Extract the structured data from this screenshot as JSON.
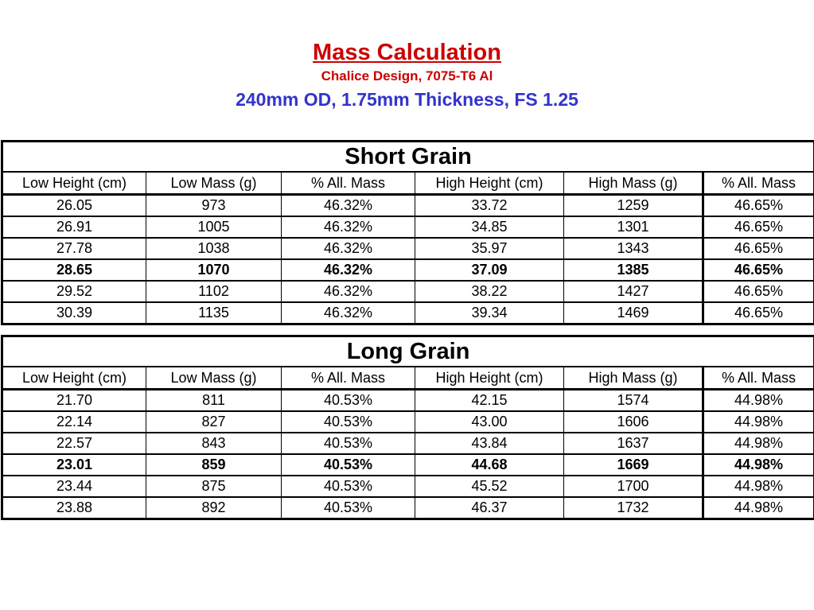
{
  "header": {
    "title": "Mass Calculation",
    "subtitle": "Chalice Design, 7075-T6 Al",
    "spec": "240mm OD, 1.75mm Thickness, FS 1.25"
  },
  "columns": [
    "Low Height (cm)",
    "Low Mass (g)",
    "% All. Mass",
    "High Height (cm)",
    "High Mass (g)",
    "% All. Mass"
  ],
  "tables": [
    {
      "title": "Short Grain",
      "rows": [
        [
          "26.05",
          "973",
          "46.32%",
          "33.72",
          "1259",
          "46.65%"
        ],
        [
          "26.91",
          "1005",
          "46.32%",
          "34.85",
          "1301",
          "46.65%"
        ],
        [
          "27.78",
          "1038",
          "46.32%",
          "35.97",
          "1343",
          "46.65%"
        ],
        [
          "28.65",
          "1070",
          "46.32%",
          "37.09",
          "1385",
          "46.65%"
        ],
        [
          "29.52",
          "1102",
          "46.32%",
          "38.22",
          "1427",
          "46.65%"
        ],
        [
          "30.39",
          "1135",
          "46.32%",
          "39.34",
          "1469",
          "46.65%"
        ]
      ]
    },
    {
      "title": "Long Grain",
      "rows": [
        [
          "21.70",
          "811",
          "40.53%",
          "42.15",
          "1574",
          "44.98%"
        ],
        [
          "22.14",
          "827",
          "40.53%",
          "43.00",
          "1606",
          "44.98%"
        ],
        [
          "22.57",
          "843",
          "40.53%",
          "43.84",
          "1637",
          "44.98%"
        ],
        [
          "23.01",
          "859",
          "40.53%",
          "44.68",
          "1669",
          "44.98%"
        ],
        [
          "23.44",
          "875",
          "40.53%",
          "45.52",
          "1700",
          "44.98%"
        ],
        [
          "23.88",
          "892",
          "40.53%",
          "46.37",
          "1732",
          "44.98%"
        ]
      ]
    }
  ]
}
